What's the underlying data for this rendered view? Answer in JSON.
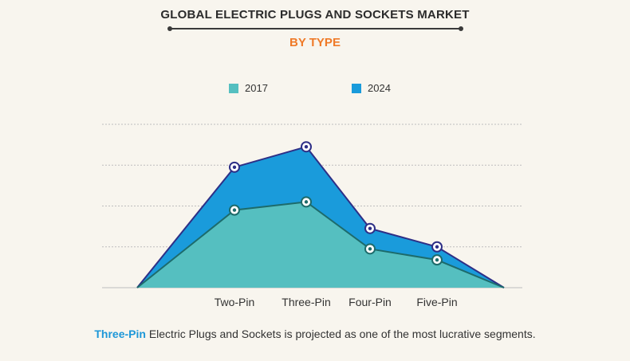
{
  "header": {
    "title": "GLOBAL ELECTRIC PLUGS AND SOCKETS MARKET",
    "subtitle": "BY TYPE"
  },
  "footer": {
    "highlight": "Three-Pin",
    "text": " Electric Plugs and Sockets is projected as one of the most lucrative segments."
  },
  "colors": {
    "series_2017": "#55bfc0",
    "series_2024": "#1a9bdb",
    "outline": "#2e2f86",
    "title": "#2b2b2b",
    "subtitle": "#ef7a28",
    "highlight": "#1d97d8",
    "background": "#f8f5ee"
  },
  "chart_data": {
    "type": "area",
    "categories": [
      "",
      "Two-Pin",
      "Three-Pin",
      "Four-Pin",
      "Five-Pin",
      ""
    ],
    "series": [
      {
        "name": "2017",
        "values": [
          0,
          1.9,
          2.1,
          0.95,
          0.68,
          0
        ]
      },
      {
        "name": "2024",
        "values": [
          0,
          2.95,
          3.45,
          1.45,
          1.0,
          0
        ]
      }
    ],
    "ylim": [
      0,
      4
    ],
    "grid": true,
    "legend": "top-center",
    "markers": [
      false,
      true,
      true,
      true,
      true,
      false
    ]
  }
}
